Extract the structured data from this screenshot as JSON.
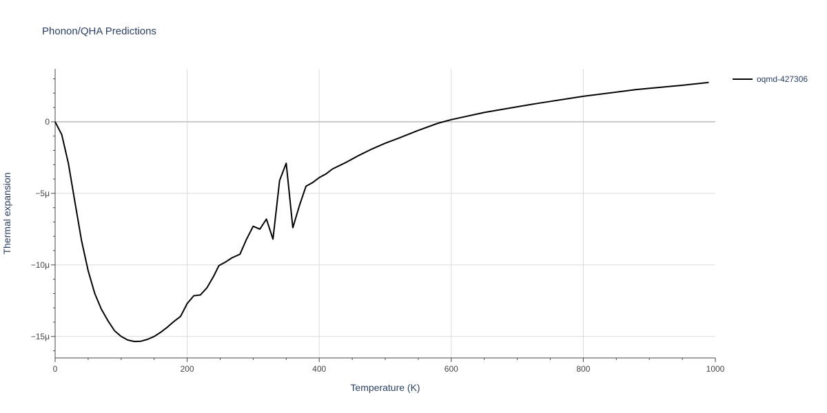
{
  "chart_data": {
    "type": "line",
    "title": "Phonon/QHA Predictions",
    "xlabel": "Temperature (K)",
    "ylabel": "Thermal expansion",
    "xlim": [
      0,
      1000
    ],
    "ylim": [
      -1.65e-05,
      3.7e-06
    ],
    "grid": true,
    "legend_position": "top-right",
    "x_ticks": [
      0,
      200,
      400,
      600,
      800,
      1000
    ],
    "x_tick_labels": [
      "0",
      "200",
      "400",
      "600",
      "800",
      "1000"
    ],
    "y_ticks": [
      0,
      -5e-06,
      -1e-05,
      -1.5e-05
    ],
    "y_tick_labels": [
      "0",
      "−5μ",
      "−10μ",
      "−15μ"
    ],
    "colors": {
      "line": "#000000",
      "grid": "#d9d9d9",
      "zero_line": "#c8c8c8"
    },
    "series": [
      {
        "name": "oqmd-427306",
        "x": [
          0,
          10,
          20,
          30,
          40,
          50,
          60,
          70,
          80,
          90,
          100,
          110,
          120,
          130,
          140,
          150,
          160,
          170,
          180,
          190,
          200,
          210,
          220,
          230,
          240,
          248,
          258,
          268,
          280,
          290,
          300,
          310,
          320,
          330,
          340,
          350,
          360,
          370,
          380,
          390,
          400,
          410,
          420,
          440,
          460,
          480,
          500,
          520,
          550,
          580,
          600,
          650,
          700,
          730,
          800,
          880,
          950,
          990
        ],
        "y": [
          0,
          -9e-07,
          -2.9e-06,
          -5.6e-06,
          -8.3e-06,
          -1.04e-05,
          -1.2e-05,
          -1.31e-05,
          -1.39e-05,
          -1.46e-05,
          -1.5e-05,
          -1.525e-05,
          -1.535e-05,
          -1.533e-05,
          -1.52e-05,
          -1.5e-05,
          -1.47e-05,
          -1.435e-05,
          -1.395e-05,
          -1.36e-05,
          -1.27e-05,
          -1.215e-05,
          -1.21e-05,
          -1.16e-05,
          -1.08e-05,
          -1.005e-05,
          -9.8e-06,
          -9.5e-06,
          -9.25e-06,
          -8.2e-06,
          -7.3e-06,
          -7.5e-06,
          -6.8e-06,
          -8.2e-06,
          -4.1e-06,
          -2.9e-06,
          -7.4e-06,
          -5.85e-06,
          -4.5e-06,
          -4.25e-06,
          -3.9e-06,
          -3.65e-06,
          -3.3e-06,
          -2.85e-06,
          -2.35e-06,
          -1.9e-06,
          -1.5e-06,
          -1.15e-06,
          -6e-07,
          -1e-07,
          1.5e-07,
          6.5e-07,
          1.05e-06,
          1.28e-06,
          1.78e-06,
          2.25e-06,
          2.55e-06,
          2.75e-06
        ]
      }
    ]
  }
}
